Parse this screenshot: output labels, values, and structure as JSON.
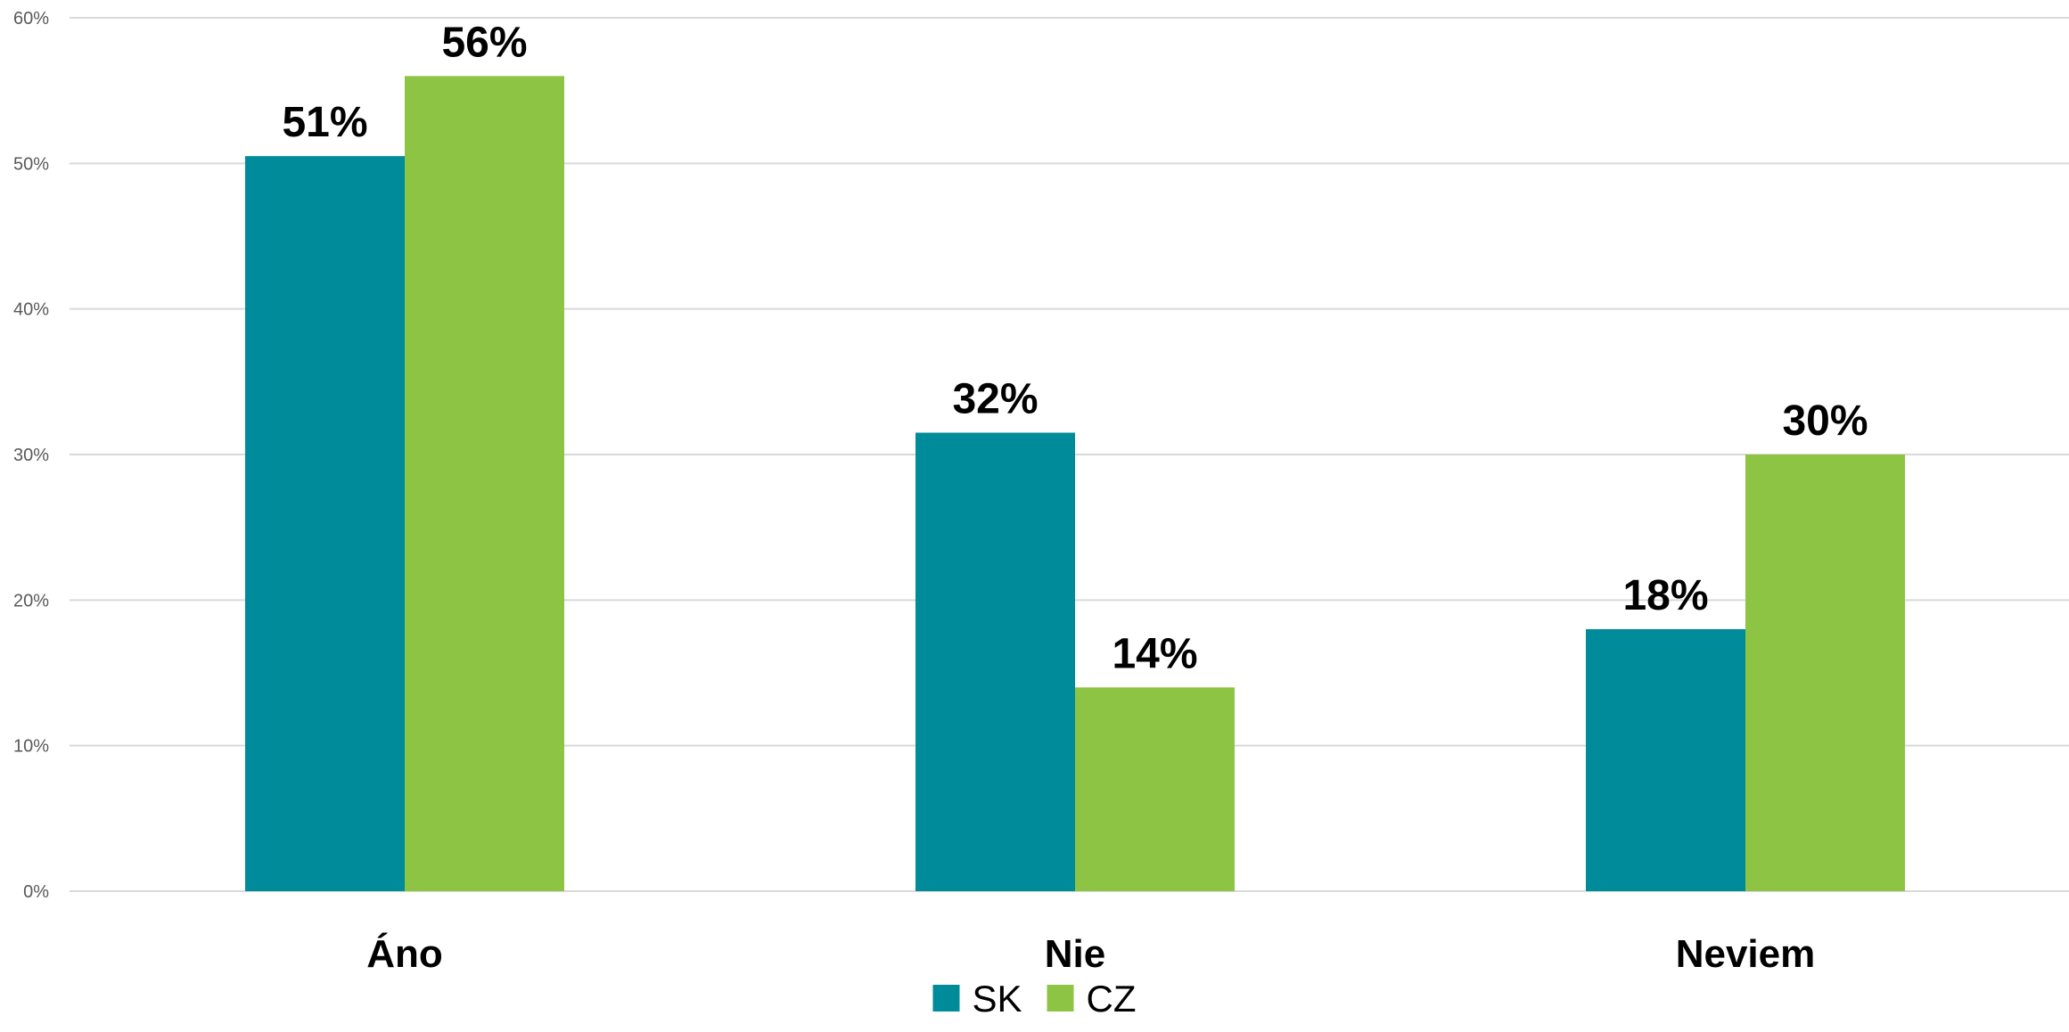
{
  "chart_data": {
    "type": "bar",
    "title": "",
    "xlabel": "",
    "ylabel": "",
    "categories": [
      "Áno",
      "Nie",
      "Neviem"
    ],
    "series": [
      {
        "name": "SK",
        "color": "#008B9A",
        "values": [
          0.505,
          0.315,
          0.18
        ],
        "labels": [
          "51%",
          "32%",
          "18%"
        ]
      },
      {
        "name": "CZ",
        "color": "#8DC443",
        "values": [
          0.56,
          0.14,
          0.3
        ],
        "labels": [
          "56%",
          "14%",
          "30%"
        ]
      }
    ],
    "ylim": [
      0,
      0.6
    ],
    "yticks": [
      {
        "value": 0,
        "label": "0%"
      },
      {
        "value": 0.1,
        "label": "10%"
      },
      {
        "value": 0.2,
        "label": "20%"
      },
      {
        "value": 0.3,
        "label": "30%"
      },
      {
        "value": 0.4,
        "label": "40%"
      },
      {
        "value": 0.5,
        "label": "50%"
      },
      {
        "value": 0.6,
        "label": "60%"
      }
    ],
    "grid": true,
    "legend": "bottom-center"
  }
}
